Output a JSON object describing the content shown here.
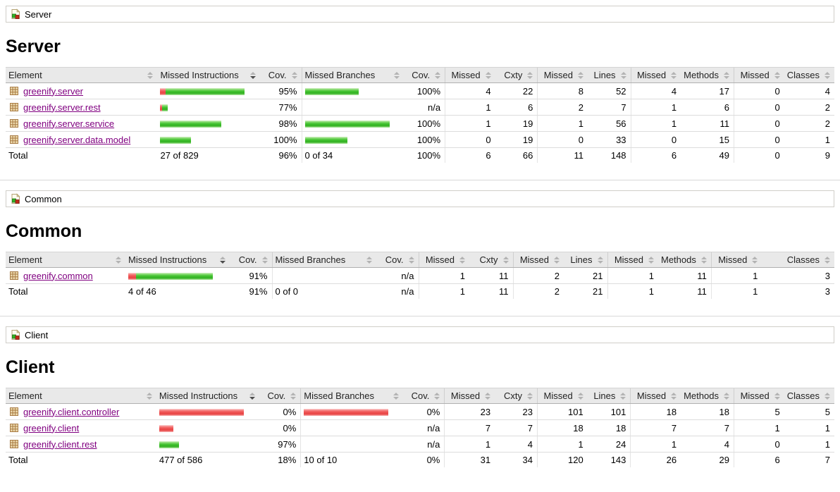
{
  "theme": {
    "link_color": "#800080",
    "header_bg": "#e9e9e9",
    "row_border": "#dcdcdc",
    "header_border": "#b0b0b0",
    "bar_green_color": "#3ec02c",
    "bar_red_color": "#ee5252"
  },
  "icons": {
    "breadcrumb_icon": "coverage-group-icon",
    "package_icon": "java-package-icon",
    "sort_icon": "sort-arrows-icon"
  },
  "sort": {
    "active_column": "Missed Instructions",
    "direction": "desc"
  },
  "columns": [
    "Element",
    "Missed Instructions",
    "Cov.",
    "Missed Branches",
    "Cov.",
    "Missed",
    "Cxty",
    "Missed",
    "Lines",
    "Missed",
    "Methods",
    "Missed",
    "Classes"
  ],
  "sections": [
    {
      "breadcrumb": "Server",
      "title": "Server",
      "rows": [
        {
          "element": "greenify.server",
          "instr": {
            "red": 8,
            "green": 112
          },
          "instr_cov": "95%",
          "branch": {
            "red": 0,
            "green": 76
          },
          "branch_cov": "100%",
          "missed_cxty": "4",
          "cxty": "22",
          "missed_lines": "8",
          "lines": "52",
          "missed_methods": "4",
          "methods": "17",
          "missed_classes": "0",
          "classes": "4"
        },
        {
          "element": "greenify.server.rest",
          "instr": {
            "red": 3,
            "green": 8
          },
          "instr_cov": "77%",
          "branch": {
            "red": 0,
            "green": 0
          },
          "branch_cov": "n/a",
          "missed_cxty": "1",
          "cxty": "6",
          "missed_lines": "2",
          "lines": "7",
          "missed_methods": "1",
          "methods": "6",
          "missed_classes": "0",
          "classes": "2"
        },
        {
          "element": "greenify.server.service",
          "instr": {
            "red": 0,
            "green": 87
          },
          "instr_cov": "98%",
          "branch": {
            "red": 0,
            "green": 120
          },
          "branch_cov": "100%",
          "missed_cxty": "1",
          "cxty": "19",
          "missed_lines": "1",
          "lines": "56",
          "missed_methods": "1",
          "methods": "11",
          "missed_classes": "0",
          "classes": "2"
        },
        {
          "element": "greenify.server.data.model",
          "instr": {
            "red": 0,
            "green": 44
          },
          "instr_cov": "100%",
          "branch": {
            "red": 0,
            "green": 60
          },
          "branch_cov": "100%",
          "missed_cxty": "0",
          "cxty": "19",
          "missed_lines": "0",
          "lines": "33",
          "missed_methods": "0",
          "methods": "15",
          "missed_classes": "0",
          "classes": "1"
        }
      ],
      "total": {
        "label": "Total",
        "instr_text": "27 of 829",
        "instr_cov": "96%",
        "branch_text": "0 of 34",
        "branch_cov": "100%",
        "missed_cxty": "6",
        "cxty": "66",
        "missed_lines": "11",
        "lines": "148",
        "missed_methods": "6",
        "methods": "49",
        "missed_classes": "0",
        "classes": "9"
      }
    },
    {
      "breadcrumb": "Common",
      "title": "Common",
      "rows": [
        {
          "element": "greenify.common",
          "instr": {
            "red": 11,
            "green": 109
          },
          "instr_cov": "91%",
          "branch": {
            "red": 0,
            "green": 0
          },
          "branch_cov": "n/a",
          "missed_cxty": "1",
          "cxty": "11",
          "missed_lines": "2",
          "lines": "21",
          "missed_methods": "1",
          "methods": "11",
          "missed_classes": "1",
          "classes": "3"
        }
      ],
      "total": {
        "label": "Total",
        "instr_text": "4 of 46",
        "instr_cov": "91%",
        "branch_text": "0 of 0",
        "branch_cov": "n/a",
        "missed_cxty": "1",
        "cxty": "11",
        "missed_lines": "2",
        "lines": "21",
        "missed_methods": "1",
        "methods": "11",
        "missed_classes": "1",
        "classes": "3"
      }
    },
    {
      "breadcrumb": "Client",
      "title": "Client",
      "rows": [
        {
          "element": "greenify.client.controller",
          "instr": {
            "red": 120,
            "green": 0
          },
          "instr_cov": "0%",
          "branch": {
            "red": 120,
            "green": 0
          },
          "branch_cov": "0%",
          "missed_cxty": "23",
          "cxty": "23",
          "missed_lines": "101",
          "lines": "101",
          "missed_methods": "18",
          "methods": "18",
          "missed_classes": "5",
          "classes": "5"
        },
        {
          "element": "greenify.client",
          "instr": {
            "red": 20,
            "green": 0
          },
          "instr_cov": "0%",
          "branch": {
            "red": 0,
            "green": 0
          },
          "branch_cov": "n/a",
          "missed_cxty": "7",
          "cxty": "7",
          "missed_lines": "18",
          "lines": "18",
          "missed_methods": "7",
          "methods": "7",
          "missed_classes": "1",
          "classes": "1"
        },
        {
          "element": "greenify.client.rest",
          "instr": {
            "red": 0,
            "green": 28
          },
          "instr_cov": "97%",
          "branch": {
            "red": 0,
            "green": 0
          },
          "branch_cov": "n/a",
          "missed_cxty": "1",
          "cxty": "4",
          "missed_lines": "1",
          "lines": "24",
          "missed_methods": "1",
          "methods": "4",
          "missed_classes": "0",
          "classes": "1"
        }
      ],
      "total": {
        "label": "Total",
        "instr_text": "477 of 586",
        "instr_cov": "18%",
        "branch_text": "10 of 10",
        "branch_cov": "0%",
        "missed_cxty": "31",
        "cxty": "34",
        "missed_lines": "120",
        "lines": "143",
        "missed_methods": "26",
        "methods": "29",
        "missed_classes": "6",
        "classes": "7"
      }
    }
  ]
}
